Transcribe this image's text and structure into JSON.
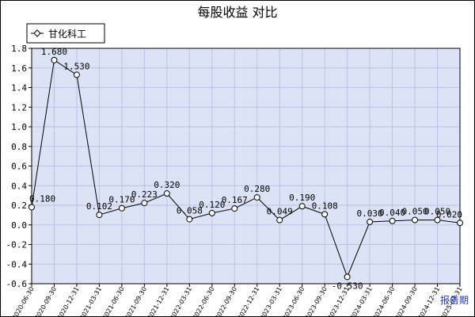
{
  "chart_data": {
    "type": "line",
    "title": "每股收益  对比",
    "xlabel": "",
    "ylabel": "",
    "ylim": [
      -0.6,
      1.8
    ],
    "yticks": [
      "-0.6",
      "-0.4",
      "-0.2",
      "0.0",
      "0.2",
      "0.4",
      "0.6",
      "0.8",
      "1.0",
      "1.2",
      "1.4",
      "1.6",
      "1.8"
    ],
    "grid": true,
    "legend": "top-left",
    "categories": [
      "2020-06-30",
      "2020-09-30",
      "2020-12-31",
      "2021-03-31",
      "2021-06-30",
      "2021-09-30",
      "2021-12-31",
      "2022-03-31",
      "2022-06-30",
      "2022-09-30",
      "2022-12-31",
      "2023-03-31",
      "2023-06-30",
      "2023-09-30",
      "2023-12-31",
      "2024-03-31",
      "2024-06-30",
      "2024-09-30",
      "2024-12-31",
      "2025-03-31"
    ],
    "series": [
      {
        "name": "甘化科工",
        "values": [
          0.18,
          1.68,
          1.53,
          0.102,
          0.17,
          0.223,
          0.32,
          0.058,
          0.12,
          0.167,
          0.28,
          0.049,
          0.19,
          0.108,
          -0.53,
          0.03,
          0.04,
          0.05,
          0.05,
          0.02
        ],
        "labels": [
          "0.180",
          "1.680",
          "1.530",
          "0.102",
          "0.170",
          "0.223",
          "0.320",
          "0.058",
          "0.120",
          "0.167",
          "0.280",
          "0.049",
          "0.190",
          "0.108",
          "-0.530",
          "0.030",
          "0.040",
          "0.050",
          "0.050",
          "0.020"
        ]
      }
    ],
    "corner_label": "报告期"
  },
  "colors": {
    "plot_bg": "#dde3f7",
    "grid": "#b9c3e6",
    "line": "#000000",
    "marker_fill": "#ffffff",
    "corner_label": "#1a33cc"
  }
}
